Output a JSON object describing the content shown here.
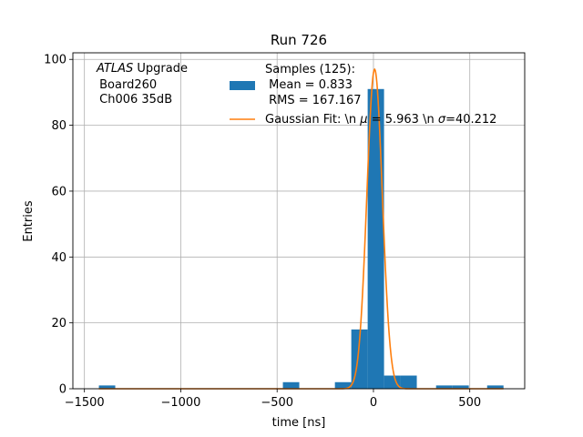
{
  "chart_data": {
    "type": "bar",
    "title": "Run 726",
    "xlabel": "time [ns]",
    "ylabel": "Entries",
    "xlim": [
      -1560,
      785
    ],
    "ylim": [
      0,
      102
    ],
    "xticks": [
      -1500,
      -1000,
      -500,
      0,
      500
    ],
    "xtick_labels": [
      "−1500",
      "−1000",
      "−500",
      "0",
      "500"
    ],
    "yticks": [
      0,
      20,
      40,
      60,
      80,
      100
    ],
    "ytick_labels": [
      "0",
      "20",
      "40",
      "60",
      "80",
      "100"
    ],
    "grid": true,
    "legend_placement": "top-center",
    "colors": {
      "bars": "#1f77b4",
      "fit": "#ff7f0e",
      "grid": "#b0b0b0"
    },
    "annotation": {
      "italic_part": "ATLAS",
      "line1_rest": " Upgrade",
      "line2": " Board260",
      "line3": " Ch006 35dB"
    },
    "series": [
      {
        "name_lines": [
          "Samples (125):",
          " Mean = 0.833",
          " RMS = 167.167"
        ],
        "type": "histogram",
        "bins": [
          {
            "x0": -1425,
            "x1": -1340,
            "count": 1
          },
          {
            "x0": -470,
            "x1": -385,
            "count": 2
          },
          {
            "x0": -200,
            "x1": -115,
            "count": 2
          },
          {
            "x0": -115,
            "x1": -30,
            "count": 18
          },
          {
            "x0": -30,
            "x1": 55,
            "count": 91
          },
          {
            "x0": 55,
            "x1": 140,
            "count": 4
          },
          {
            "x0": 140,
            "x1": 225,
            "count": 4
          },
          {
            "x0": 325,
            "x1": 410,
            "count": 1
          },
          {
            "x0": 410,
            "x1": 495,
            "count": 1
          },
          {
            "x0": 590,
            "x1": 675,
            "count": 1
          }
        ]
      },
      {
        "name_parts": [
          "Gaussian Fit: \\n ",
          "μ",
          " = 5.963 \\n ",
          "σ",
          "=40.212"
        ],
        "type": "gaussian",
        "mu": 5.963,
        "sigma": 40.212,
        "amplitude": 97,
        "x_range": [
          -1425,
          675
        ]
      }
    ]
  }
}
